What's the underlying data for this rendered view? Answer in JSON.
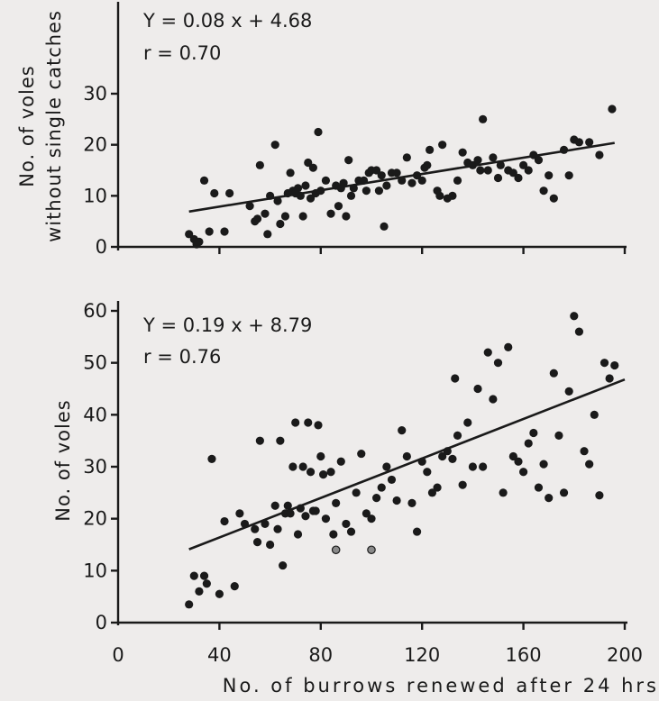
{
  "chart_data": [
    {
      "type": "scatter",
      "title": "",
      "xlabel": "",
      "ylabel": [
        "No. of voles",
        "without single catches"
      ],
      "equation": "Y = 0.08 x + 4.68",
      "r_text": "r = 0.70",
      "xlim": [
        0,
        200
      ],
      "ylim": [
        0,
        30
      ],
      "yticks": [
        0,
        10,
        20,
        30
      ],
      "ytick_labels": [
        "0",
        "10",
        "20",
        "30"
      ],
      "xticks": [
        40,
        80,
        120,
        160,
        200
      ],
      "grid": false,
      "regression": {
        "slope": 0.08,
        "intercept": 4.68,
        "x_range": [
          28,
          196
        ]
      },
      "points": [
        [
          28,
          2.5
        ],
        [
          30,
          1.5
        ],
        [
          31,
          0.5
        ],
        [
          32,
          1
        ],
        [
          34,
          13
        ],
        [
          36,
          3
        ],
        [
          38,
          10.5
        ],
        [
          42,
          3
        ],
        [
          44,
          10.5
        ],
        [
          52,
          8
        ],
        [
          54,
          5
        ],
        [
          55,
          5.5
        ],
        [
          56,
          16
        ],
        [
          58,
          6.5
        ],
        [
          59,
          2.5
        ],
        [
          60,
          10
        ],
        [
          62,
          20
        ],
        [
          63,
          9
        ],
        [
          64,
          4.5
        ],
        [
          66,
          6
        ],
        [
          67,
          10.5
        ],
        [
          68,
          14.5
        ],
        [
          69,
          11
        ],
        [
          70,
          10.5
        ],
        [
          71,
          11.5
        ],
        [
          72,
          10
        ],
        [
          73,
          6
        ],
        [
          74,
          12
        ],
        [
          75,
          16.5
        ],
        [
          76,
          9.5
        ],
        [
          77,
          15.5
        ],
        [
          78,
          10.5
        ],
        [
          79,
          22.5
        ],
        [
          80,
          11
        ],
        [
          82,
          13
        ],
        [
          84,
          6.5
        ],
        [
          86,
          12
        ],
        [
          87,
          8
        ],
        [
          88,
          11.5
        ],
        [
          89,
          12.5
        ],
        [
          90,
          6
        ],
        [
          91,
          17
        ],
        [
          92,
          10
        ],
        [
          93,
          11.5
        ],
        [
          95,
          13
        ],
        [
          97,
          13
        ],
        [
          98,
          11
        ],
        [
          99,
          14.5
        ],
        [
          100,
          15
        ],
        [
          102,
          15
        ],
        [
          103,
          11
        ],
        [
          104,
          14
        ],
        [
          105,
          4
        ],
        [
          106,
          12
        ],
        [
          108,
          14.5
        ],
        [
          110,
          14.5
        ],
        [
          112,
          13
        ],
        [
          114,
          17.5
        ],
        [
          116,
          12.5
        ],
        [
          118,
          14
        ],
        [
          120,
          13
        ],
        [
          121,
          15.5
        ],
        [
          122,
          16
        ],
        [
          123,
          19
        ],
        [
          126,
          11
        ],
        [
          127,
          10
        ],
        [
          128,
          20
        ],
        [
          130,
          9.5
        ],
        [
          132,
          10
        ],
        [
          134,
          13
        ],
        [
          136,
          18.5
        ],
        [
          138,
          16.5
        ],
        [
          140,
          16
        ],
        [
          142,
          17
        ],
        [
          143,
          15
        ],
        [
          144,
          25
        ],
        [
          146,
          15
        ],
        [
          148,
          17.5
        ],
        [
          150,
          13.5
        ],
        [
          151,
          16
        ],
        [
          154,
          15
        ],
        [
          156,
          14.5
        ],
        [
          158,
          13.5
        ],
        [
          160,
          16
        ],
        [
          162,
          15
        ],
        [
          164,
          18
        ],
        [
          166,
          17
        ],
        [
          168,
          11
        ],
        [
          170,
          14
        ],
        [
          172,
          9.5
        ],
        [
          176,
          19
        ],
        [
          178,
          14
        ],
        [
          180,
          21
        ],
        [
          182,
          20.5
        ],
        [
          186,
          20.5
        ],
        [
          190,
          18
        ],
        [
          195,
          27
        ]
      ],
      "open_points": []
    },
    {
      "type": "scatter",
      "title": "",
      "xlabel": "No. of burrows renewed after 24 hrs",
      "ylabel": [
        "No. of voles"
      ],
      "equation": "Y = 0.19 x + 8.79",
      "r_text": "r = 0.76",
      "xlim": [
        0,
        200
      ],
      "ylim": [
        0,
        60
      ],
      "yticks": [
        0,
        10,
        20,
        30,
        40,
        50,
        60
      ],
      "ytick_labels": [
        "0",
        "10",
        "20",
        "30",
        "40",
        "50",
        "60"
      ],
      "xticks": [
        0,
        40,
        80,
        120,
        160,
        200
      ],
      "xtick_labels": [
        "0",
        "40",
        "80",
        "120",
        "160",
        "200"
      ],
      "grid": false,
      "regression": {
        "slope": 0.19,
        "intercept": 8.79,
        "x_range": [
          28,
          200
        ]
      },
      "points": [
        [
          28,
          3.5
        ],
        [
          30,
          9
        ],
        [
          32,
          6
        ],
        [
          34,
          9
        ],
        [
          35,
          7.5
        ],
        [
          37,
          31.5
        ],
        [
          40,
          5.5
        ],
        [
          42,
          19.5
        ],
        [
          46,
          7
        ],
        [
          48,
          21
        ],
        [
          50,
          19
        ],
        [
          54,
          18
        ],
        [
          55,
          15.5
        ],
        [
          56,
          35
        ],
        [
          58,
          19
        ],
        [
          60,
          15
        ],
        [
          62,
          22.5
        ],
        [
          63,
          18
        ],
        [
          64,
          35
        ],
        [
          65,
          11
        ],
        [
          66,
          21
        ],
        [
          67,
          22.5
        ],
        [
          68,
          21
        ],
        [
          69,
          30
        ],
        [
          70,
          38.5
        ],
        [
          71,
          17
        ],
        [
          72,
          22
        ],
        [
          73,
          30
        ],
        [
          74,
          20.5
        ],
        [
          75,
          38.5
        ],
        [
          76,
          29
        ],
        [
          77,
          21.5
        ],
        [
          78,
          21.5
        ],
        [
          79,
          38
        ],
        [
          80,
          32
        ],
        [
          81,
          28.5
        ],
        [
          82,
          20
        ],
        [
          84,
          29
        ],
        [
          85,
          17
        ],
        [
          86,
          23
        ],
        [
          88,
          31
        ],
        [
          90,
          19
        ],
        [
          92,
          17.5
        ],
        [
          94,
          25
        ],
        [
          96,
          32.5
        ],
        [
          98,
          21
        ],
        [
          100,
          20
        ],
        [
          102,
          24
        ],
        [
          104,
          26
        ],
        [
          106,
          30
        ],
        [
          108,
          27.5
        ],
        [
          110,
          23.5
        ],
        [
          112,
          37
        ],
        [
          114,
          32
        ],
        [
          116,
          23
        ],
        [
          118,
          17.5
        ],
        [
          120,
          31
        ],
        [
          122,
          29
        ],
        [
          124,
          25
        ],
        [
          126,
          26
        ],
        [
          128,
          32
        ],
        [
          130,
          33
        ],
        [
          132,
          31.5
        ],
        [
          133,
          47
        ],
        [
          134,
          36
        ],
        [
          136,
          26.5
        ],
        [
          138,
          38.5
        ],
        [
          140,
          30
        ],
        [
          142,
          45
        ],
        [
          144,
          30
        ],
        [
          146,
          52
        ],
        [
          148,
          43
        ],
        [
          150,
          50
        ],
        [
          152,
          25
        ],
        [
          154,
          53
        ],
        [
          156,
          32
        ],
        [
          158,
          31
        ],
        [
          160,
          29
        ],
        [
          162,
          34.5
        ],
        [
          164,
          36.5
        ],
        [
          166,
          26
        ],
        [
          168,
          30.5
        ],
        [
          170,
          24
        ],
        [
          172,
          48
        ],
        [
          174,
          36
        ],
        [
          176,
          25
        ],
        [
          178,
          44.5
        ],
        [
          180,
          59
        ],
        [
          182,
          56
        ],
        [
          184,
          33
        ],
        [
          186,
          30.5
        ],
        [
          188,
          40
        ],
        [
          190,
          24.5
        ],
        [
          192,
          50
        ],
        [
          194,
          47
        ],
        [
          196,
          49.5
        ]
      ],
      "open_points": [
        [
          86,
          14
        ],
        [
          100,
          14
        ]
      ]
    }
  ]
}
